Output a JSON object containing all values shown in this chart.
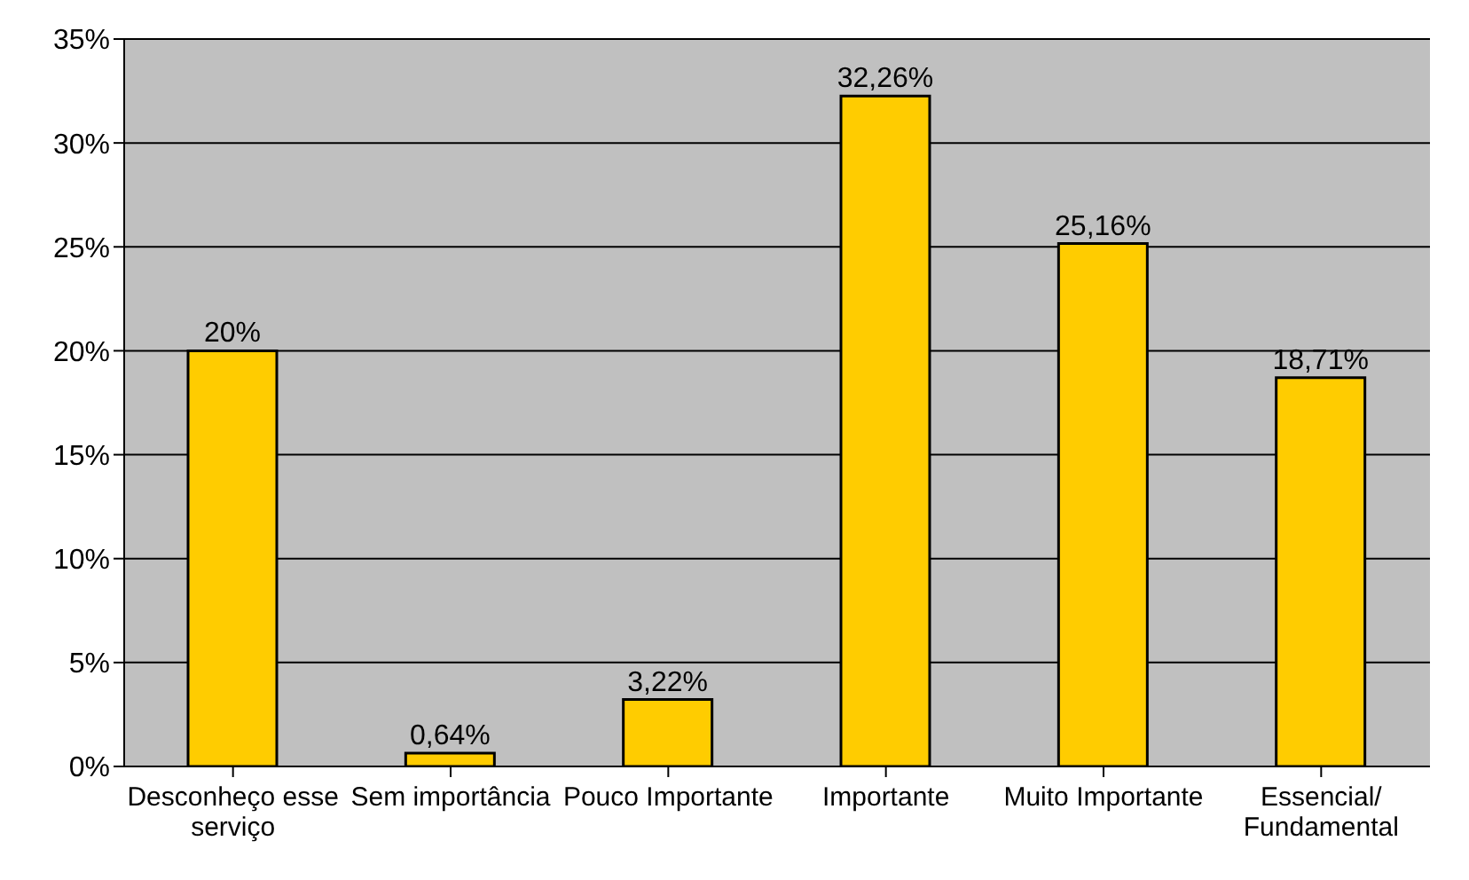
{
  "chart_data": {
    "type": "bar",
    "categories": [
      "Desconheço esse serviço",
      "Sem importância",
      "Pouco Importante",
      "Importante",
      "Muito Importante",
      "Essencial/Fundamental"
    ],
    "values": [
      20,
      0.64,
      3.22,
      32.26,
      25.16,
      18.71
    ],
    "value_labels": [
      "20%",
      "0,64%",
      "3,22%",
      "32,26%",
      "25,16%",
      "18,71%"
    ],
    "color": "#ffcc00",
    "ylim": [
      0,
      35
    ],
    "yticks": [
      {
        "value": 0,
        "label": "0%"
      },
      {
        "value": 5,
        "label": "5%"
      },
      {
        "value": 10,
        "label": "10%"
      },
      {
        "value": 15,
        "label": "15%"
      },
      {
        "value": 20,
        "label": "20%"
      },
      {
        "value": 25,
        "label": "25%"
      },
      {
        "value": 30,
        "label": "30%"
      },
      {
        "value": 35,
        "label": "35%"
      }
    ],
    "grid": "y",
    "legend": false
  }
}
